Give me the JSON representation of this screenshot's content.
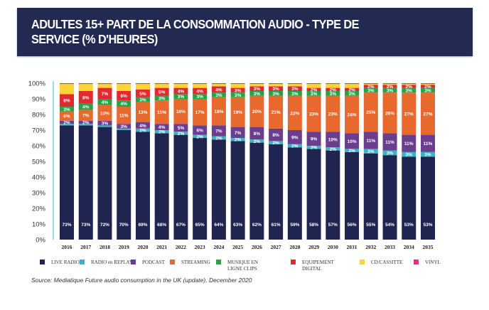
{
  "chart_data": {
    "type": "bar",
    "stacked": true,
    "title": "ADULTES 15+ PART DE LA CONSOMMATION AUDIO - TYPE DE SERVICE (% D'HEURES)",
    "categories": [
      "2016",
      "2017",
      "2018",
      "2019",
      "2020",
      "2021",
      "2022",
      "2023",
      "2024",
      "2025",
      "2026",
      "2027",
      "2028",
      "2029",
      "2030",
      "2031",
      "2032",
      "2033",
      "2034",
      "2035"
    ],
    "ylim": [
      0,
      100
    ],
    "yticks": [
      "0%",
      "10%",
      "20%",
      "30%",
      "40%",
      "50%",
      "60%",
      "70%",
      "80%",
      "90%",
      "100%"
    ],
    "legend_position": "bottom",
    "series": [
      {
        "name": "LIVE RADIO",
        "color": "#1f2550",
        "labeled": true,
        "values": [
          73,
          73,
          72,
          70,
          69,
          68,
          67,
          65,
          64,
          63,
          62,
          61,
          59,
          58,
          57,
          56,
          55,
          54,
          53,
          53
        ]
      },
      {
        "name": "RADIO en REPLAY",
        "color": "#3bb3c3",
        "labeled": true,
        "values": [
          1,
          1,
          1,
          1,
          2,
          2,
          2,
          2,
          2,
          2,
          2,
          2,
          2,
          2,
          2,
          2,
          3,
          3,
          3,
          3
        ]
      },
      {
        "name": "PODCAST",
        "color": "#6b3d8f",
        "labeled": true,
        "values": [
          2,
          2,
          3,
          3,
          4,
          4,
          5,
          6,
          7,
          7,
          8,
          8,
          9,
          9,
          10,
          10,
          11,
          11,
          11,
          11
        ]
      },
      {
        "name": "STREAMING",
        "color": "#e8692e",
        "labeled": true,
        "values": [
          6,
          7,
          10,
          11,
          13,
          15,
          16,
          17,
          18,
          19,
          20,
          21,
          22,
          23,
          23,
          24,
          25,
          26,
          27,
          27
        ]
      },
      {
        "name": "MUSIQUE EN LIGNE CLIPS",
        "color": "#27a24a",
        "labeled": true,
        "values": [
          3,
          4,
          4,
          4,
          3,
          3,
          3,
          3,
          3,
          3,
          3,
          3,
          3,
          3,
          3,
          3,
          3,
          3,
          3,
          3
        ]
      },
      {
        "name": "EQUIPEMENT DIGITAL",
        "color": "#e02a2f",
        "labeled": true,
        "values": [
          8,
          8,
          7,
          6,
          5,
          5,
          4,
          4,
          4,
          3,
          3,
          3,
          3,
          2,
          2,
          2,
          2,
          2,
          2,
          2
        ]
      },
      {
        "name": "CD/CASSITTE",
        "color": "#fcd535",
        "labeled": false,
        "values": [
          6.5,
          4.5,
          2.5,
          4.5,
          3.5,
          2.5,
          2.5,
          2.5,
          1.5,
          2.5,
          1.5,
          1.5,
          1.5,
          2.5,
          2.5,
          2.5,
          0.5,
          0.5,
          0.5,
          0.5
        ]
      },
      {
        "name": "VINYL",
        "color": "#e0308a",
        "labeled": false,
        "values": [
          0.5,
          0.5,
          0.5,
          0.5,
          0.5,
          0.5,
          0.5,
          0.5,
          0.5,
          0.5,
          0.5,
          0.5,
          0.5,
          0.5,
          0.5,
          0.5,
          0.5,
          0.5,
          0.5,
          0.5
        ]
      }
    ]
  },
  "header": {
    "title_line1": "ADULTES 15+ PART DE LA CONSOMMATION AUDIO - TYPE DE",
    "title_line2": "SERVICE (% D'HEURES)",
    "color": "#232a52"
  },
  "legend": [
    {
      "label": "LIVE RADIO"
    },
    {
      "label": "RADIO en REPLAY"
    },
    {
      "label": "PODCAST"
    },
    {
      "label": "STREAMING"
    },
    {
      "label": "MUSIQUE EN LIGNE CLIPS"
    },
    {
      "label": "EQUIPEMENT DIGITAL"
    },
    {
      "label": "CD/CASSITTE"
    },
    {
      "label": "VINYL"
    }
  ],
  "source": "Source: Mediatique Future audio consumption in the UK (update), December 2020"
}
